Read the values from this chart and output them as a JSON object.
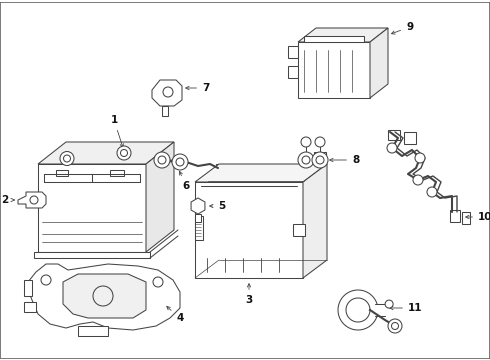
{
  "background_color": "#ffffff",
  "line_color": "#444444",
  "text_color": "#111111",
  "figsize": [
    4.9,
    3.6
  ],
  "dpi": 100,
  "lw": 0.75
}
